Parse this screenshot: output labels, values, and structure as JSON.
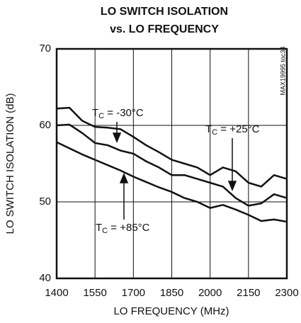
{
  "chart_data": {
    "type": "line",
    "title": [
      "LO SWITCH ISOLATION",
      "vs. LO FREQUENCY"
    ],
    "xlabel": "LO FREQUENCY (MHz)",
    "ylabel": "LO SWITCH ISOLATION (dB)",
    "side_note": "MAX19995 toc34",
    "x": [
      1400,
      1450,
      1500,
      1550,
      1600,
      1650,
      1700,
      1750,
      1800,
      1850,
      1900,
      1950,
      2000,
      2050,
      2100,
      2150,
      2200,
      2250,
      2300
    ],
    "series": [
      {
        "label_parts": [
          "T",
          "C",
          " = -30°C"
        ],
        "color": "#111111",
        "values": [
          62.2,
          62.3,
          60.6,
          59.8,
          59.7,
          59.5,
          58.5,
          57.4,
          56.5,
          55.5,
          55.0,
          54.5,
          53.5,
          54.5,
          54.0,
          52.5,
          52.0,
          53.5,
          53.0
        ]
      },
      {
        "label_parts": [
          "T",
          "C",
          " = +25°C"
        ],
        "color": "#111111",
        "values": [
          60.0,
          60.1,
          59.0,
          57.7,
          57.4,
          56.7,
          56.3,
          55.3,
          54.5,
          53.5,
          53.5,
          53.0,
          52.5,
          52.0,
          50.5,
          49.5,
          49.8,
          51.0,
          50.5
        ]
      },
      {
        "label_parts": [
          "T",
          "C",
          " = +85°C"
        ],
        "color": "#111111",
        "values": [
          57.8,
          57.0,
          56.2,
          55.5,
          54.8,
          54.1,
          53.3,
          52.6,
          51.9,
          51.3,
          50.5,
          50.0,
          49.2,
          49.6,
          49.0,
          48.3,
          47.5,
          47.7,
          47.4
        ]
      }
    ],
    "xlim": [
      1400,
      2300
    ],
    "xticks": [
      1400,
      1550,
      1700,
      1850,
      2000,
      2150,
      2300
    ],
    "ylim": [
      40,
      70
    ],
    "yticks": [
      40,
      50,
      60,
      70
    ],
    "grid": true
  }
}
